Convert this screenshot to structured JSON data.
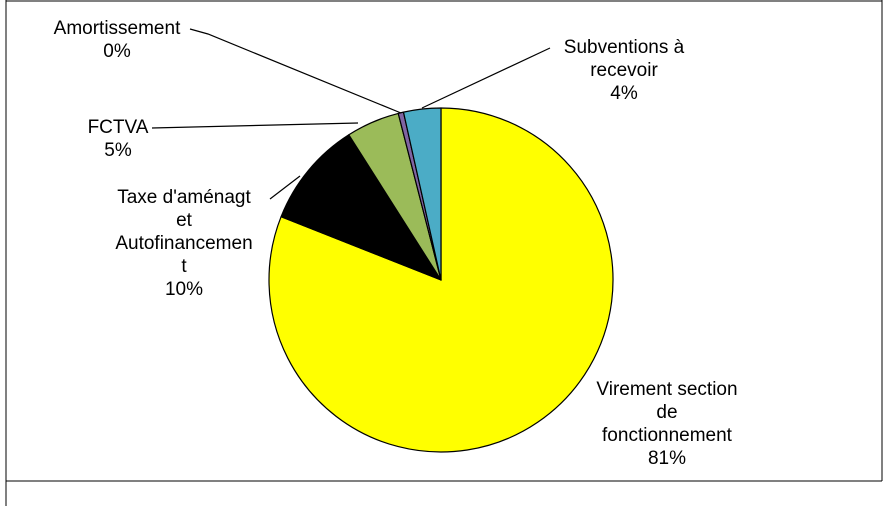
{
  "chart_data": {
    "type": "pie",
    "title": "",
    "slices": [
      {
        "name": "Virement section de fonctionnement",
        "value": 81,
        "label_lines": [
          "Virement section",
          "de",
          "fonctionnement"
        ],
        "percent_label": "81%",
        "color": "#ffff00"
      },
      {
        "name": "Taxe d'aménagt et Autofinancement",
        "value": 10,
        "label_lines": [
          "Taxe d'aménagt",
          "et",
          "Autofinancemen",
          "t"
        ],
        "percent_label": "10%",
        "color": "#000000"
      },
      {
        "name": "FCTVA",
        "value": 5,
        "label_lines": [
          "FCTVA"
        ],
        "percent_label": "5%",
        "color": "#9bbb59"
      },
      {
        "name": "Amortissement",
        "value": 0.5,
        "label_lines": [
          "Amortissement"
        ],
        "percent_label": "0%",
        "color": "#8064a2"
      },
      {
        "name": "Subventions à recevoir",
        "value": 3.5,
        "label_lines": [
          "Subventions à",
          "recevoir"
        ],
        "percent_label": "4%",
        "color": "#4bacc6"
      }
    ],
    "start_angle_deg": 0,
    "direction": "clockwise",
    "legend": "none",
    "data_labels": "outside-with-leader-lines"
  }
}
